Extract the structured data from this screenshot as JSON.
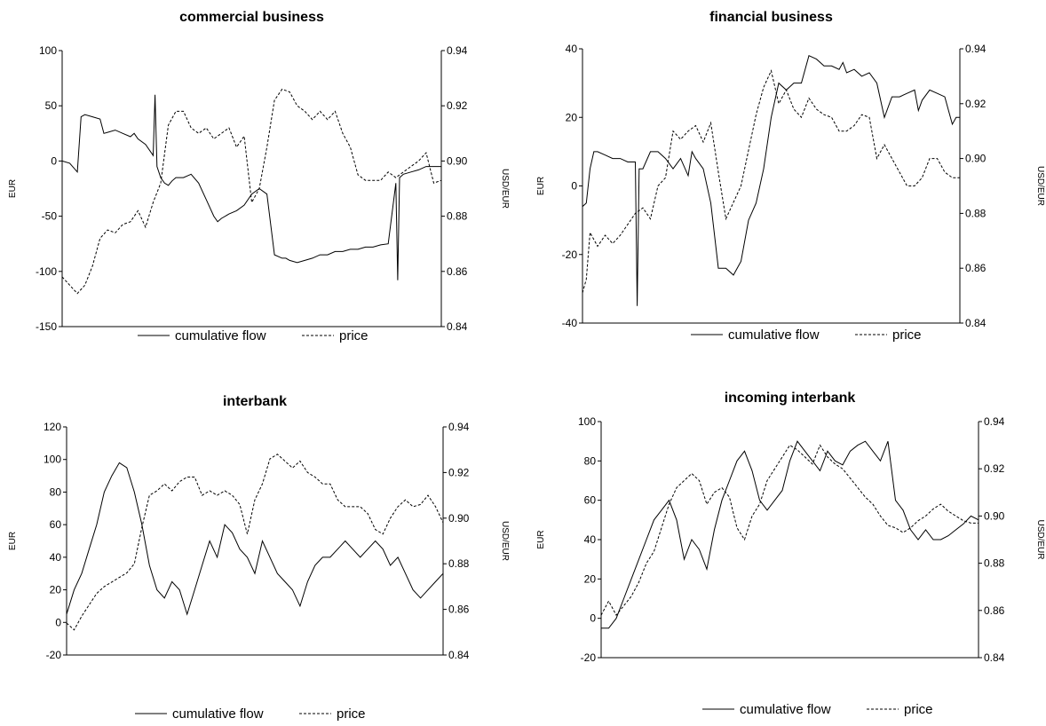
{
  "chart_data": [
    {
      "type": "line",
      "title": "commercial business",
      "xlabel": "",
      "ylabel": "EUR",
      "y2label": "USD/EUR",
      "ylim": [
        -150,
        100
      ],
      "yticks": [
        "100",
        "50",
        "0",
        "-50",
        "-100",
        "-150"
      ],
      "y2lim": [
        0.84,
        0.94
      ],
      "y2ticks": [
        "0.94",
        "0.92",
        "0.90",
        "0.88",
        "0.86",
        "0.84"
      ],
      "xlim": [
        0,
        100
      ],
      "grid": false,
      "legend_position": "bottom",
      "series": [
        {
          "name": "cumulative flow",
          "axis": "left",
          "style": "solid",
          "x": [
            0,
            2,
            4,
            5,
            6,
            8,
            10,
            11,
            12,
            14,
            16,
            18,
            19,
            20,
            22,
            24,
            24.5,
            25,
            26,
            27,
            28,
            29,
            30,
            32,
            34,
            36,
            38,
            40,
            41,
            42,
            44,
            46,
            48,
            50,
            52,
            54,
            56,
            58,
            59,
            60,
            62,
            64,
            66,
            68,
            70,
            72,
            74,
            76,
            78,
            80,
            82,
            84,
            86,
            88,
            88.5,
            89,
            90,
            92,
            94,
            96,
            98,
            100
          ],
          "y": [
            0,
            -2,
            -10,
            40,
            42,
            40,
            38,
            25,
            26,
            28,
            25,
            22,
            25,
            20,
            15,
            5,
            60,
            -5,
            -15,
            -20,
            -22,
            -18,
            -15,
            -15,
            -12,
            -20,
            -35,
            -50,
            -55,
            -52,
            -48,
            -45,
            -40,
            -30,
            -25,
            -30,
            -85,
            -88,
            -88,
            -90,
            -92,
            -90,
            -88,
            -85,
            -85,
            -82,
            -82,
            -80,
            -80,
            -78,
            -78,
            -76,
            -75,
            -20,
            -108,
            -15,
            -12,
            -10,
            -8,
            -5,
            -5,
            -5
          ]
        },
        {
          "name": "price",
          "axis": "right",
          "style": "dashed",
          "x": [
            0,
            2,
            4,
            6,
            8,
            10,
            12,
            14,
            16,
            18,
            20,
            22,
            24,
            26,
            28,
            30,
            32,
            34,
            36,
            38,
            40,
            42,
            44,
            46,
            48,
            50,
            52,
            54,
            56,
            58,
            60,
            62,
            64,
            66,
            68,
            70,
            72,
            74,
            76,
            78,
            80,
            82,
            84,
            86,
            88,
            90,
            92,
            94,
            96,
            98,
            100
          ],
          "y": [
            0.858,
            0.855,
            0.852,
            0.855,
            0.862,
            0.872,
            0.875,
            0.874,
            0.877,
            0.878,
            0.882,
            0.876,
            0.885,
            0.892,
            0.913,
            0.918,
            0.918,
            0.912,
            0.91,
            0.912,
            0.908,
            0.91,
            0.912,
            0.905,
            0.909,
            0.885,
            0.89,
            0.905,
            0.922,
            0.926,
            0.925,
            0.92,
            0.918,
            0.915,
            0.918,
            0.915,
            0.918,
            0.91,
            0.905,
            0.895,
            0.893,
            0.893,
            0.893,
            0.896,
            0.894,
            0.896,
            0.898,
            0.9,
            0.903,
            0.892,
            0.893
          ]
        }
      ]
    },
    {
      "type": "line",
      "title": "financial business",
      "xlabel": "",
      "ylabel": "EUR",
      "y2label": "USD/EUR",
      "ylim": [
        -40,
        40
      ],
      "yticks": [
        "40",
        "20",
        "0",
        "-20",
        "-40"
      ],
      "y2lim": [
        0.84,
        0.94
      ],
      "y2ticks": [
        "0.94",
        "0.92",
        "0.90",
        "0.88",
        "0.86",
        "0.84"
      ],
      "xlim": [
        0,
        100
      ],
      "grid": false,
      "legend_position": "bottom",
      "series": [
        {
          "name": "cumulative flow",
          "axis": "left",
          "style": "solid",
          "x": [
            0,
            1,
            2,
            3,
            4,
            6,
            8,
            10,
            12,
            14,
            14.5,
            15,
            16,
            18,
            20,
            22,
            24,
            26,
            28,
            29,
            30,
            32,
            34,
            36,
            38,
            40,
            42,
            44,
            46,
            48,
            50,
            52,
            54,
            56,
            58,
            60,
            62,
            64,
            66,
            68,
            69,
            70,
            72,
            74,
            76,
            78,
            80,
            82,
            84,
            86,
            88,
            89,
            90,
            92,
            94,
            96,
            98,
            99,
            100
          ],
          "y": [
            -6,
            -5,
            5,
            10,
            10,
            9,
            8,
            8,
            7,
            7,
            -35,
            5,
            5,
            10,
            10,
            8,
            5,
            8,
            3,
            10,
            8,
            5,
            -5,
            -24,
            -24,
            -26,
            -22,
            -10,
            -5,
            5,
            20,
            30,
            28,
            30,
            30,
            38,
            37,
            35,
            35,
            34,
            36,
            33,
            34,
            32,
            33,
            30,
            20,
            26,
            26,
            27,
            28,
            22,
            25,
            28,
            27,
            26,
            18,
            20,
            20
          ]
        },
        {
          "name": "price",
          "axis": "right",
          "style": "dashed",
          "x": [
            0,
            1,
            2,
            4,
            6,
            8,
            10,
            12,
            14,
            16,
            18,
            20,
            22,
            24,
            26,
            28,
            30,
            32,
            34,
            36,
            38,
            40,
            42,
            44,
            46,
            48,
            50,
            52,
            54,
            56,
            58,
            60,
            62,
            64,
            66,
            68,
            70,
            72,
            74,
            76,
            78,
            80,
            82,
            84,
            86,
            88,
            90,
            92,
            94,
            96,
            98,
            100
          ],
          "y": [
            0.851,
            0.856,
            0.873,
            0.868,
            0.872,
            0.869,
            0.872,
            0.876,
            0.88,
            0.882,
            0.878,
            0.89,
            0.893,
            0.91,
            0.907,
            0.91,
            0.912,
            0.906,
            0.913,
            0.895,
            0.878,
            0.884,
            0.89,
            0.903,
            0.916,
            0.926,
            0.932,
            0.92,
            0.925,
            0.918,
            0.915,
            0.922,
            0.918,
            0.916,
            0.915,
            0.91,
            0.91,
            0.912,
            0.916,
            0.915,
            0.9,
            0.905,
            0.9,
            0.895,
            0.89,
            0.89,
            0.893,
            0.9,
            0.9,
            0.895,
            0.893,
            0.893
          ]
        }
      ]
    },
    {
      "type": "line",
      "title": "interbank",
      "xlabel": "",
      "ylabel": "EUR",
      "y2label": "USD/EUR",
      "ylim": [
        -20,
        120
      ],
      "yticks": [
        "120",
        "100",
        "80",
        "60",
        "40",
        "20",
        "0",
        "-20"
      ],
      "y2lim": [
        0.84,
        0.94
      ],
      "y2ticks": [
        "0.94",
        "0.92",
        "0.90",
        "0.88",
        "0.86",
        "0.84"
      ],
      "xlim": [
        0,
        100
      ],
      "grid": false,
      "legend_position": "bottom",
      "series": [
        {
          "name": "cumulative flow",
          "axis": "left",
          "style": "solid",
          "x": [
            0,
            2,
            4,
            6,
            8,
            10,
            12,
            14,
            16,
            18,
            20,
            22,
            24,
            26,
            28,
            30,
            32,
            34,
            36,
            38,
            40,
            42,
            44,
            46,
            48,
            50,
            52,
            54,
            56,
            58,
            60,
            62,
            64,
            66,
            68,
            70,
            72,
            74,
            76,
            78,
            80,
            82,
            84,
            86,
            88,
            90,
            92,
            94,
            96,
            98,
            100
          ],
          "y": [
            5,
            20,
            30,
            45,
            60,
            80,
            90,
            98,
            95,
            80,
            60,
            35,
            20,
            15,
            25,
            20,
            5,
            20,
            35,
            50,
            40,
            60,
            55,
            45,
            40,
            30,
            50,
            40,
            30,
            25,
            20,
            10,
            25,
            35,
            40,
            40,
            45,
            50,
            45,
            40,
            45,
            50,
            45,
            35,
            40,
            30,
            20,
            15,
            20,
            25,
            30
          ]
        },
        {
          "name": "price",
          "axis": "right",
          "style": "dashed",
          "x": [
            0,
            2,
            4,
            6,
            8,
            10,
            12,
            14,
            16,
            18,
            20,
            22,
            24,
            26,
            28,
            30,
            32,
            34,
            36,
            38,
            40,
            42,
            44,
            46,
            48,
            50,
            52,
            54,
            56,
            58,
            60,
            62,
            64,
            66,
            68,
            70,
            72,
            74,
            76,
            78,
            80,
            82,
            84,
            86,
            88,
            90,
            92,
            94,
            96,
            98,
            100
          ],
          "y": [
            0.854,
            0.851,
            0.857,
            0.862,
            0.867,
            0.87,
            0.872,
            0.874,
            0.876,
            0.88,
            0.896,
            0.91,
            0.912,
            0.915,
            0.912,
            0.916,
            0.918,
            0.918,
            0.91,
            0.912,
            0.91,
            0.912,
            0.91,
            0.906,
            0.893,
            0.908,
            0.915,
            0.926,
            0.928,
            0.925,
            0.922,
            0.925,
            0.92,
            0.918,
            0.915,
            0.915,
            0.908,
            0.905,
            0.905,
            0.905,
            0.902,
            0.895,
            0.893,
            0.9,
            0.905,
            0.908,
            0.905,
            0.906,
            0.91,
            0.905,
            0.898
          ]
        }
      ]
    },
    {
      "type": "line",
      "title": "incoming interbank",
      "xlabel": "",
      "ylabel": "EUR",
      "y2label": "USD/EUR",
      "ylim": [
        -20,
        100
      ],
      "yticks": [
        "100",
        "80",
        "60",
        "40",
        "20",
        "0",
        "-20"
      ],
      "y2lim": [
        0.84,
        0.94
      ],
      "y2ticks": [
        "0.94",
        "0.92",
        "0.90",
        "0.88",
        "0.86",
        "0.84"
      ],
      "xlim": [
        0,
        100
      ],
      "grid": false,
      "legend_position": "bottom",
      "series": [
        {
          "name": "cumulative flow",
          "axis": "left",
          "style": "solid",
          "x": [
            0,
            2,
            4,
            6,
            8,
            10,
            12,
            14,
            16,
            18,
            20,
            22,
            24,
            26,
            28,
            30,
            32,
            34,
            36,
            38,
            40,
            42,
            44,
            46,
            48,
            50,
            52,
            54,
            56,
            58,
            60,
            62,
            64,
            66,
            68,
            70,
            72,
            74,
            76,
            78,
            80,
            82,
            84,
            86,
            88,
            90,
            92,
            94,
            96,
            98,
            100
          ],
          "y": [
            -5,
            -5,
            0,
            10,
            20,
            30,
            40,
            50,
            55,
            60,
            50,
            30,
            40,
            35,
            25,
            45,
            60,
            70,
            80,
            85,
            75,
            60,
            55,
            60,
            65,
            80,
            90,
            85,
            80,
            75,
            85,
            80,
            78,
            85,
            88,
            90,
            85,
            80,
            90,
            60,
            55,
            45,
            40,
            45,
            40,
            40,
            42,
            45,
            48,
            52,
            50
          ]
        },
        {
          "name": "price",
          "axis": "right",
          "style": "dashed",
          "x": [
            0,
            2,
            4,
            6,
            8,
            10,
            12,
            14,
            16,
            18,
            20,
            22,
            24,
            26,
            28,
            30,
            32,
            34,
            36,
            38,
            40,
            42,
            44,
            46,
            48,
            50,
            52,
            54,
            56,
            58,
            60,
            62,
            64,
            66,
            68,
            70,
            72,
            74,
            76,
            78,
            80,
            82,
            84,
            86,
            88,
            90,
            92,
            94,
            96,
            98,
            100
          ],
          "y": [
            0.858,
            0.864,
            0.858,
            0.862,
            0.866,
            0.872,
            0.88,
            0.885,
            0.895,
            0.905,
            0.912,
            0.915,
            0.918,
            0.915,
            0.905,
            0.91,
            0.912,
            0.908,
            0.895,
            0.89,
            0.9,
            0.905,
            0.915,
            0.92,
            0.925,
            0.93,
            0.928,
            0.925,
            0.922,
            0.93,
            0.925,
            0.922,
            0.92,
            0.916,
            0.912,
            0.908,
            0.905,
            0.9,
            0.896,
            0.895,
            0.893,
            0.895,
            0.898,
            0.9,
            0.903,
            0.905,
            0.902,
            0.9,
            0.898,
            0.897,
            0.897
          ]
        }
      ]
    }
  ]
}
